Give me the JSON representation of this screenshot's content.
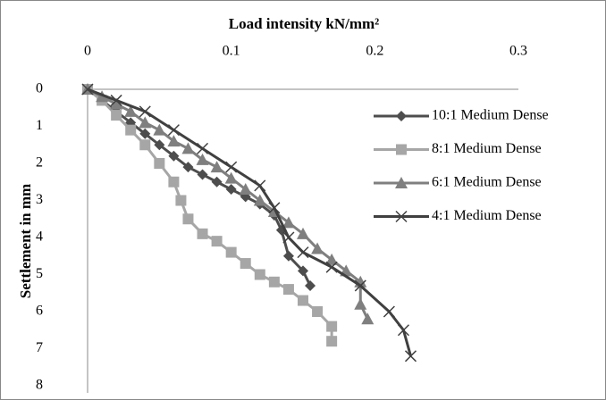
{
  "chart_data": {
    "type": "line",
    "title": "Load intensity kN/mm²",
    "y_label": "Settlement in mm",
    "xlim": [
      0,
      0.3
    ],
    "xticks": [
      0,
      0.1,
      0.2,
      0.3
    ],
    "ylim": [
      0,
      8
    ],
    "yticks": [
      0,
      1,
      2,
      3,
      4,
      5,
      6,
      7,
      8
    ],
    "y_inverted": true,
    "x_axis_position": "top",
    "grid": false,
    "legend": "right",
    "series": [
      {
        "name": "10:1 Medium Dense",
        "color": "#4d4d4d",
        "marker": "diamond",
        "x": [
          0,
          0.01,
          0.02,
          0.03,
          0.04,
          0.05,
          0.06,
          0.07,
          0.08,
          0.09,
          0.1,
          0.11,
          0.12,
          0.13,
          0.135,
          0.14,
          0.15,
          0.155
        ],
        "values": [
          0,
          0.3,
          0.6,
          0.9,
          1.2,
          1.5,
          1.8,
          2.1,
          2.3,
          2.5,
          2.7,
          2.9,
          3.1,
          3.4,
          3.8,
          4.5,
          4.9,
          5.3
        ]
      },
      {
        "name": "8:1 Medium Dense",
        "color": "#a6a6a6",
        "marker": "square",
        "x": [
          0,
          0.01,
          0.02,
          0.03,
          0.04,
          0.05,
          0.06,
          0.065,
          0.07,
          0.08,
          0.09,
          0.1,
          0.11,
          0.12,
          0.13,
          0.14,
          0.15,
          0.16,
          0.17,
          0.17
        ],
        "values": [
          0,
          0.3,
          0.7,
          1.1,
          1.5,
          2.0,
          2.5,
          3.0,
          3.5,
          3.9,
          4.1,
          4.4,
          4.7,
          5.0,
          5.2,
          5.4,
          5.7,
          6.0,
          6.4,
          6.8
        ]
      },
      {
        "name": "6:1 Medium Dense",
        "color": "#7f7f7f",
        "marker": "triangle",
        "x": [
          0,
          0.01,
          0.02,
          0.03,
          0.04,
          0.05,
          0.06,
          0.07,
          0.08,
          0.09,
          0.1,
          0.11,
          0.12,
          0.13,
          0.14,
          0.15,
          0.16,
          0.17,
          0.18,
          0.19,
          0.19,
          0.195
        ],
        "values": [
          0,
          0.2,
          0.4,
          0.6,
          0.9,
          1.1,
          1.4,
          1.6,
          1.9,
          2.1,
          2.4,
          2.7,
          3.0,
          3.3,
          3.6,
          3.9,
          4.3,
          4.6,
          4.9,
          5.2,
          5.8,
          6.2
        ]
      },
      {
        "name": "4:1 Medium Dense",
        "color": "#404040",
        "marker": "x",
        "x": [
          0,
          0.02,
          0.04,
          0.06,
          0.08,
          0.1,
          0.12,
          0.13,
          0.14,
          0.15,
          0.17,
          0.19,
          0.21,
          0.22,
          0.225
        ],
        "values": [
          0,
          0.3,
          0.6,
          1.1,
          1.6,
          2.1,
          2.6,
          3.2,
          4.0,
          4.4,
          4.8,
          5.3,
          6.0,
          6.5,
          7.2
        ]
      }
    ]
  }
}
